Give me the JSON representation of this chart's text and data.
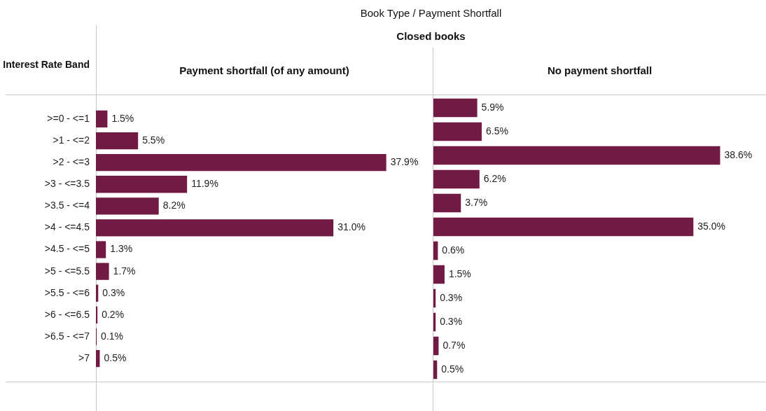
{
  "chart_data": [
    {
      "type": "bar",
      "orientation": "horizontal",
      "title": "Payment shortfall (of any amount)",
      "ylabel": "Interest Rate Band",
      "annotations": [
        "Book Type  /  Payment Shortfall",
        "Closed books"
      ],
      "categories": [
        ">=0 - <=1",
        ">1 - <=2",
        ">2 - <=3",
        ">3 - <=3.5",
        ">3.5 - <=4",
        ">4 - <=4.5",
        ">4.5 - <=5",
        ">5 - <=5.5",
        ">5.5 - <=6",
        ">6 - <=6.5",
        ">6.5 - <=7",
        ">7"
      ],
      "values": [
        1.5,
        5.5,
        37.9,
        11.9,
        8.2,
        31.0,
        1.3,
        1.7,
        0.3,
        0.2,
        0.1,
        0.5
      ],
      "value_labels": [
        "1.5%",
        "5.5%",
        "37.9%",
        "11.9%",
        "8.2%",
        "31.0%",
        "1.3%",
        "1.7%",
        "0.3%",
        "0.2%",
        "0.1%",
        "0.5%"
      ],
      "color": "#701a44",
      "grid": false,
      "legend": false,
      "tick_labels": "y"
    },
    {
      "type": "bar",
      "orientation": "horizontal",
      "title": "No payment shortfall",
      "categories": [
        null,
        null,
        null,
        null,
        null,
        null,
        null,
        null,
        null,
        null,
        null,
        null
      ],
      "values": [
        5.9,
        6.5,
        38.6,
        6.2,
        3.7,
        35.0,
        0.6,
        1.5,
        0.3,
        0.3,
        0.7,
        0.5
      ],
      "value_labels": [
        "5.9%",
        "6.5%",
        "38.6%",
        "6.2%",
        "3.7%",
        "35.0%",
        "0.6%",
        "1.5%",
        "0.3%",
        "0.3%",
        "0.7%",
        "0.5%"
      ],
      "color": "#701a44",
      "grid": false,
      "legend": false,
      "tick_labels": false
    }
  ]
}
